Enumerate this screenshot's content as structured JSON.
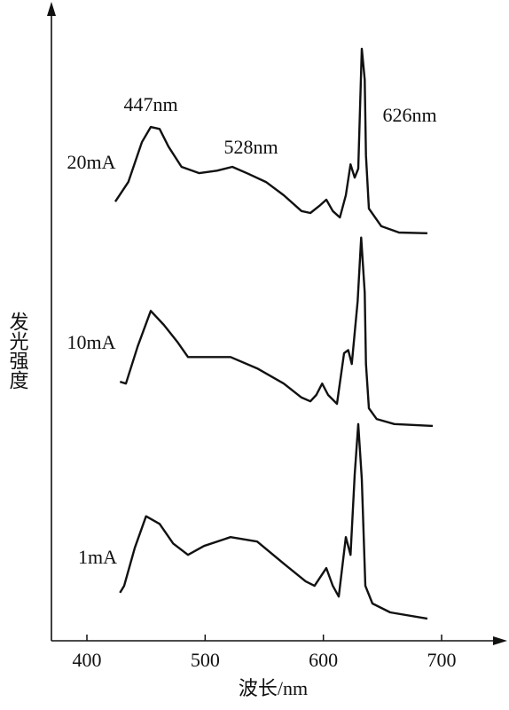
{
  "chart_data": {
    "type": "line",
    "x_label": "波长/nm",
    "y_label": "发光强度",
    "xlim": [
      370,
      745
    ],
    "ylim": [
      0,
      100
    ],
    "xticks": [
      400,
      500,
      600,
      700
    ],
    "color": "#111111",
    "annotations": [
      "447nm",
      "528nm",
      "626nm"
    ],
    "series": [
      {
        "name": "20mA",
        "color": "#111111",
        "x": [
          424,
          435,
          446.5,
          454,
          461.5,
          469,
          480,
          495,
          510,
          523,
          536.5,
          551.5,
          566.5,
          581.5,
          589,
          596.5,
          602.5,
          608,
          614,
          619,
          623,
          626.5,
          629.5,
          632.5,
          635,
          636,
          638.5,
          649,
          664,
          688
        ],
        "values": [
          69.5,
          72.6,
          78.9,
          81.3,
          81.0,
          78.2,
          75.0,
          74.0,
          74.4,
          75.0,
          73.9,
          72.6,
          70.5,
          68.0,
          67.7,
          68.8,
          69.8,
          68.0,
          67.0,
          70.5,
          75.4,
          73.3,
          74.7,
          93.7,
          88.8,
          76.8,
          68.4,
          65.6,
          64.6,
          64.5
        ]
      },
      {
        "name": "10mA",
        "color": "#111111",
        "x": [
          428,
          433,
          443,
          454,
          465,
          476.5,
          485.5,
          521.5,
          544,
          566.5,
          581.5,
          589,
          594,
          599,
          604,
          611.5,
          617.5,
          621,
          624,
          629,
          632,
          635,
          636,
          638.5,
          645,
          660,
          692.5
        ],
        "values": [
          41.0,
          40.7,
          46.6,
          52.2,
          50.0,
          47.3,
          44.9,
          44.9,
          43.1,
          40.7,
          38.5,
          37.9,
          38.9,
          40.7,
          38.9,
          37.5,
          45.5,
          46.0,
          43.8,
          53.7,
          63.8,
          55.1,
          43.8,
          36.8,
          35.1,
          34.3,
          34.0
        ]
      },
      {
        "name": "1mA",
        "color": "#111111",
        "x": [
          428,
          431.5,
          440.5,
          450,
          461.5,
          473,
          485.5,
          499,
          521.5,
          544,
          566.5,
          585,
          592.5,
          602.5,
          608,
          613,
          619,
          623,
          626.5,
          629.5,
          632.5,
          635.5,
          641.5,
          656.5,
          688
        ],
        "values": [
          7.6,
          8.7,
          14.7,
          19.7,
          18.5,
          15.4,
          13.6,
          15.0,
          16.4,
          15.7,
          12.2,
          9.4,
          8.7,
          11.5,
          8.7,
          7.0,
          16.4,
          13.6,
          26.3,
          34.3,
          25.6,
          8.7,
          5.9,
          4.5,
          3.5
        ]
      }
    ]
  }
}
